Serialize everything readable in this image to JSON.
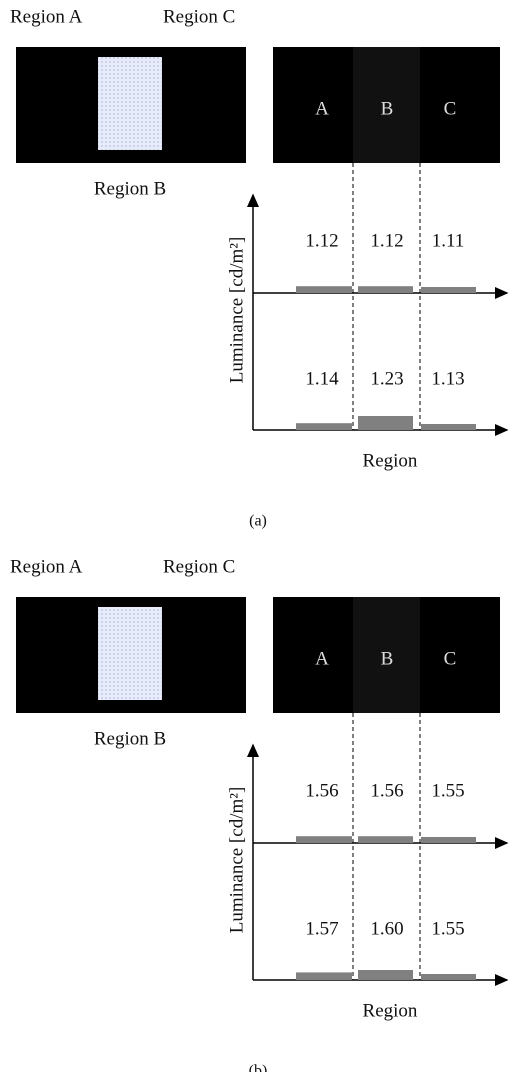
{
  "panels": [
    {
      "region_a": "Region A",
      "region_c": "Region C",
      "region_b": "Region B",
      "image_letters": [
        "A",
        "B",
        "C"
      ],
      "y_axis_label": "Luminance [cd/m²]",
      "x_axis_label": "Region",
      "upper_values": [
        "1.12",
        "1.12",
        "1.11"
      ],
      "lower_values": [
        "1.14",
        "1.23",
        "1.13"
      ],
      "caption": "(a)"
    },
    {
      "region_a": "Region A",
      "region_c": "Region C",
      "region_b": "Region B",
      "image_letters": [
        "A",
        "B",
        "C"
      ],
      "y_axis_label": "Luminance [cd/m²]",
      "x_axis_label": "Region",
      "upper_values": [
        "1.56",
        "1.56",
        "1.55"
      ],
      "lower_values": [
        "1.57",
        "1.60",
        "1.55"
      ],
      "caption": "(b)"
    }
  ]
}
